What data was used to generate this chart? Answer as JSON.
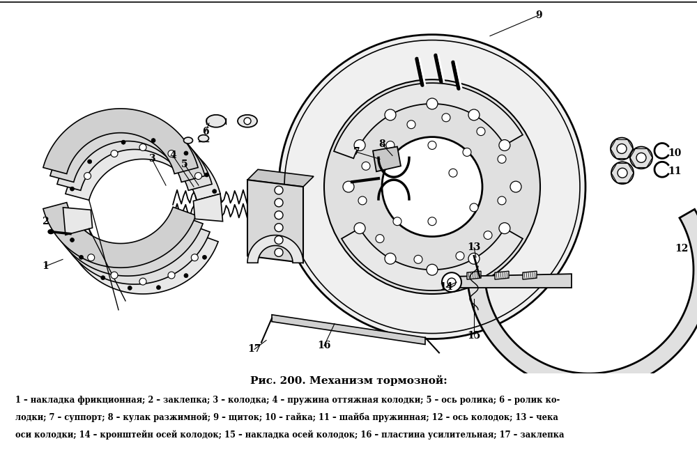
{
  "title": "Рис. 200. Механизм тормозной:",
  "caption_line1": "1 – накладка фрикционная; 2 – заклепка; 3 – колодка; 4 – пружина оттяжная колодки; 5 – ось ролика; 6 – ролик ко-",
  "caption_line2": "лодки; 7 – суппорт; 8 – кулак разжимной; 9 – щиток; 10 – гайка; 11 – шайба пружинная; 12 – ось колодок; 13 – чека",
  "caption_line3": "оси колодки; 14 – кронштейн осей колодок; 15 – накладка осей колодок; 16 – пластина усилительная; 17 – заклепка",
  "bg_color": "#ffffff",
  "fig_width": 10.0,
  "fig_height": 6.46,
  "dpi": 100
}
